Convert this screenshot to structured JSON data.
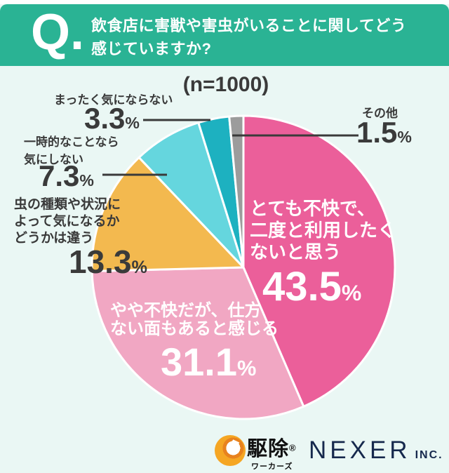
{
  "header": {
    "q": "Q.",
    "question_lines": [
      "飲食店に害獣や害虫がいることに関してどう",
      "感じていますか?"
    ]
  },
  "n_label": "(n=1000)",
  "chart_data": {
    "type": "pie",
    "title": "飲食店に害獣や害虫がいることに関してどう感じていますか?",
    "sample_size_label": "(n=1000)",
    "unit": "%",
    "start_angle_deg": 0,
    "direction": "clockwise",
    "legend_position": "callouts",
    "slices": [
      {
        "label": "とても不快で、二度と利用したくないと思う",
        "value": 43.5,
        "color": "#eb5f9a"
      },
      {
        "label": "やや不快だが、仕方ない面もあると感じる",
        "value": 31.1,
        "color": "#f1a7c3"
      },
      {
        "label": "虫の種類や状況によって気になるかどうかは違う",
        "value": 13.3,
        "color": "#f3b94f"
      },
      {
        "label": "一時的なことなら気にしない",
        "value": 7.3,
        "color": "#65d6de"
      },
      {
        "label": "まったく気にならない",
        "value": 3.3,
        "color": "#1db1c0"
      },
      {
        "label": "その他",
        "value": 1.5,
        "color": "#9c9c9c"
      }
    ]
  },
  "callouts": {
    "totemo": {
      "lines": [
        "とても不快で、",
        "二度と利用したく",
        "ないと思う"
      ],
      "number": "43.5",
      "unit": "%"
    },
    "yaya": {
      "lines": [
        "やや不快だが、仕方",
        "ない面もあると感じる"
      ],
      "number": "31.1",
      "unit": "%"
    },
    "mushi": {
      "lines": [
        "虫の種類や状況に",
        "よって気になるか",
        "どうかは違う"
      ],
      "number": "13.3",
      "unit": "%"
    },
    "ichijiteki": {
      "lines": [
        "一時的なことなら",
        "気にしない"
      ],
      "number": "7.3",
      "unit": "%"
    },
    "mattaku": {
      "lines": [
        "まったく気にならない"
      ],
      "number": "3.3",
      "unit": "%"
    },
    "sonota": {
      "lines": [
        "その他"
      ],
      "number": "1.5",
      "unit": "%"
    }
  },
  "footer": {
    "kujo": {
      "name": "駆除",
      "reg": "®",
      "sub": "ワーカーズ"
    },
    "nexer": {
      "name": "NEXER",
      "suffix": "INC."
    }
  },
  "colors": {
    "header_bg": "#2ab394",
    "page_bg": "#eaf7f4",
    "text_dark": "#3a3a3a",
    "text_light": "#ffffff",
    "nexer_navy": "#16294d",
    "slice_border": "#ffffff",
    "leader_line": "#3a3a3a"
  }
}
